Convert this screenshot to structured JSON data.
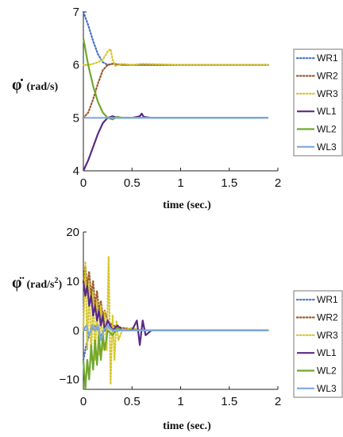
{
  "series_colors": {
    "WR1": "#4472c4",
    "WR2": "#9c5a2a",
    "WR3": "#d4c62a",
    "WL1": "#5b2a86",
    "WL2": "#70a830",
    "WL3": "#7fa8e0"
  },
  "chart_data": [
    {
      "type": "line",
      "xlabel": "time (sec.)",
      "ylabel": "(rad/s)",
      "ylabel_symbol": "φ̇",
      "xlim": [
        0,
        2
      ],
      "ylim": [
        4,
        7
      ],
      "xticks": [
        0,
        0.5,
        1,
        1.5,
        2
      ],
      "xtick_labels": [
        "0",
        "0.5",
        "1",
        "1.5",
        "2"
      ],
      "yticks": [
        4,
        5,
        6,
        7
      ],
      "ytick_labels": [
        "4",
        "5",
        "6",
        "7"
      ],
      "grid": false,
      "legend_position": "outside-right",
      "series": [
        {
          "name": "WR1",
          "style": "dotted",
          "x": [
            0,
            0.05,
            0.1,
            0.15,
            0.2,
            0.25,
            0.3,
            0.4,
            0.6,
            1.0,
            1.5,
            1.9
          ],
          "y": [
            7.0,
            6.75,
            6.45,
            6.2,
            6.05,
            6.0,
            6.02,
            6.0,
            6.0,
            6.0,
            6.0,
            6.0
          ]
        },
        {
          "name": "WR2",
          "style": "dotted",
          "x": [
            0,
            0.05,
            0.1,
            0.15,
            0.2,
            0.25,
            0.3,
            0.4,
            0.6,
            1.0,
            1.5,
            1.9
          ],
          "y": [
            5.0,
            5.1,
            5.35,
            5.65,
            5.9,
            6.0,
            6.02,
            6.0,
            6.0,
            6.0,
            6.0,
            6.0
          ]
        },
        {
          "name": "WR3",
          "style": "dotted",
          "x": [
            0,
            0.05,
            0.1,
            0.15,
            0.2,
            0.25,
            0.28,
            0.3,
            0.33,
            0.4,
            0.5,
            0.6,
            1.0,
            1.5,
            1.9
          ],
          "y": [
            6.0,
            6.0,
            6.02,
            6.05,
            6.1,
            6.25,
            6.3,
            6.1,
            5.98,
            6.02,
            6.0,
            6.02,
            6.0,
            6.0,
            6.0
          ]
        },
        {
          "name": "WL1",
          "style": "solid",
          "x": [
            0,
            0.05,
            0.1,
            0.15,
            0.2,
            0.25,
            0.3,
            0.35,
            0.4,
            0.5,
            0.58,
            0.6,
            0.62,
            0.7,
            1.0,
            1.5,
            1.9
          ],
          "y": [
            4.0,
            4.2,
            4.45,
            4.7,
            4.9,
            5.0,
            5.03,
            5.0,
            5.0,
            5.0,
            5.03,
            5.08,
            5.02,
            5.0,
            5.0,
            5.0,
            5.0
          ]
        },
        {
          "name": "WL2",
          "style": "solid",
          "x": [
            0,
            0.05,
            0.1,
            0.15,
            0.2,
            0.25,
            0.3,
            0.35,
            0.4,
            0.5,
            0.6,
            1.0,
            1.5,
            1.9
          ],
          "y": [
            6.5,
            6.0,
            5.6,
            5.3,
            5.1,
            5.0,
            4.97,
            5.02,
            5.0,
            5.0,
            5.0,
            5.0,
            5.0,
            5.0
          ]
        },
        {
          "name": "WL3",
          "style": "solid",
          "x": [
            0,
            0.5,
            1.0,
            1.5,
            1.9
          ],
          "y": [
            5.0,
            5.0,
            5.0,
            5.0,
            5.0
          ]
        }
      ]
    },
    {
      "type": "line",
      "xlabel": "time (sec.)",
      "ylabel": "(rad/s",
      "ylabel_sup": "2",
      "ylabel_close": ")",
      "ylabel_symbol": "φ̈",
      "xlim": [
        0,
        2
      ],
      "ylim": [
        -12,
        20
      ],
      "xticks": [
        0,
        0.5,
        1,
        1.5,
        2
      ],
      "xtick_labels": [
        "0",
        "0.5",
        "1",
        "1.5",
        "2"
      ],
      "yticks": [
        -10,
        0,
        10,
        20
      ],
      "ytick_labels": [
        "−10",
        "0",
        "10",
        "20"
      ],
      "grid": false,
      "legend_position": "outside-right",
      "series": [
        {
          "name": "WR1",
          "style": "dotted",
          "x": [
            0,
            0.03,
            0.06,
            0.09,
            0.12,
            0.15,
            0.18,
            0.21,
            0.25,
            0.3,
            0.4,
            0.6,
            1.0,
            1.5,
            1.9
          ],
          "y": [
            -6,
            -3,
            -1,
            0,
            1,
            0,
            -1,
            0,
            0.5,
            0,
            0,
            0,
            0,
            0,
            0
          ]
        },
        {
          "name": "WR2",
          "style": "dotted",
          "x": [
            0,
            0.02,
            0.04,
            0.06,
            0.08,
            0.1,
            0.12,
            0.14,
            0.16,
            0.18,
            0.2,
            0.22,
            0.25,
            0.3,
            0.4,
            0.6,
            1.0,
            1.5,
            1.9
          ],
          "y": [
            10,
            13,
            9,
            12,
            7,
            10,
            5,
            8,
            4,
            6,
            3,
            4,
            2,
            1,
            0.5,
            0,
            0,
            0,
            0
          ]
        },
        {
          "name": "WR3",
          "style": "dotted",
          "x": [
            0,
            0.02,
            0.04,
            0.06,
            0.08,
            0.1,
            0.12,
            0.14,
            0.16,
            0.18,
            0.2,
            0.22,
            0.24,
            0.26,
            0.28,
            0.3,
            0.32,
            0.34,
            0.36,
            0.4,
            0.5,
            0.6,
            1.0,
            1.5,
            1.9
          ],
          "y": [
            0,
            14,
            -4,
            10,
            -6,
            8,
            -6,
            6,
            -5,
            5,
            -4,
            4,
            -4,
            15,
            -11,
            3,
            -6,
            2,
            -2,
            0,
            0.5,
            0,
            0,
            0,
            0
          ]
        },
        {
          "name": "WL1",
          "style": "solid",
          "x": [
            0,
            0.02,
            0.04,
            0.06,
            0.08,
            0.1,
            0.12,
            0.14,
            0.16,
            0.18,
            0.2,
            0.22,
            0.25,
            0.3,
            0.35,
            0.4,
            0.45,
            0.5,
            0.55,
            0.58,
            0.61,
            0.64,
            0.7,
            1.0,
            1.5,
            1.9
          ],
          "y": [
            10,
            7,
            9,
            5,
            7,
            3,
            5,
            2,
            4,
            1,
            3,
            0,
            2,
            0,
            1,
            0,
            0,
            0,
            2,
            -3,
            2,
            -1,
            0,
            0,
            0,
            0
          ]
        },
        {
          "name": "WL2",
          "style": "solid",
          "x": [
            0,
            0.02,
            0.04,
            0.06,
            0.08,
            0.1,
            0.12,
            0.14,
            0.16,
            0.18,
            0.2,
            0.22,
            0.25,
            0.3,
            0.35,
            0.4,
            0.5,
            0.6,
            1.0,
            1.5,
            1.9
          ],
          "y": [
            -6,
            -12,
            -6,
            -10,
            -3,
            -8,
            -2,
            -7,
            -1,
            -6,
            -1,
            -4,
            0,
            -1,
            0.5,
            0,
            0,
            0,
            0,
            0,
            0
          ]
        },
        {
          "name": "WL3",
          "style": "solid",
          "x": [
            0,
            0.03,
            0.06,
            0.09,
            0.12,
            0.15,
            0.18,
            0.21,
            0.25,
            0.3,
            0.4,
            0.6,
            1.0,
            1.5,
            1.9
          ],
          "y": [
            0,
            1,
            -1,
            1,
            0,
            1,
            -2,
            0,
            1,
            0,
            0,
            0,
            0,
            0,
            0
          ]
        }
      ]
    }
  ]
}
